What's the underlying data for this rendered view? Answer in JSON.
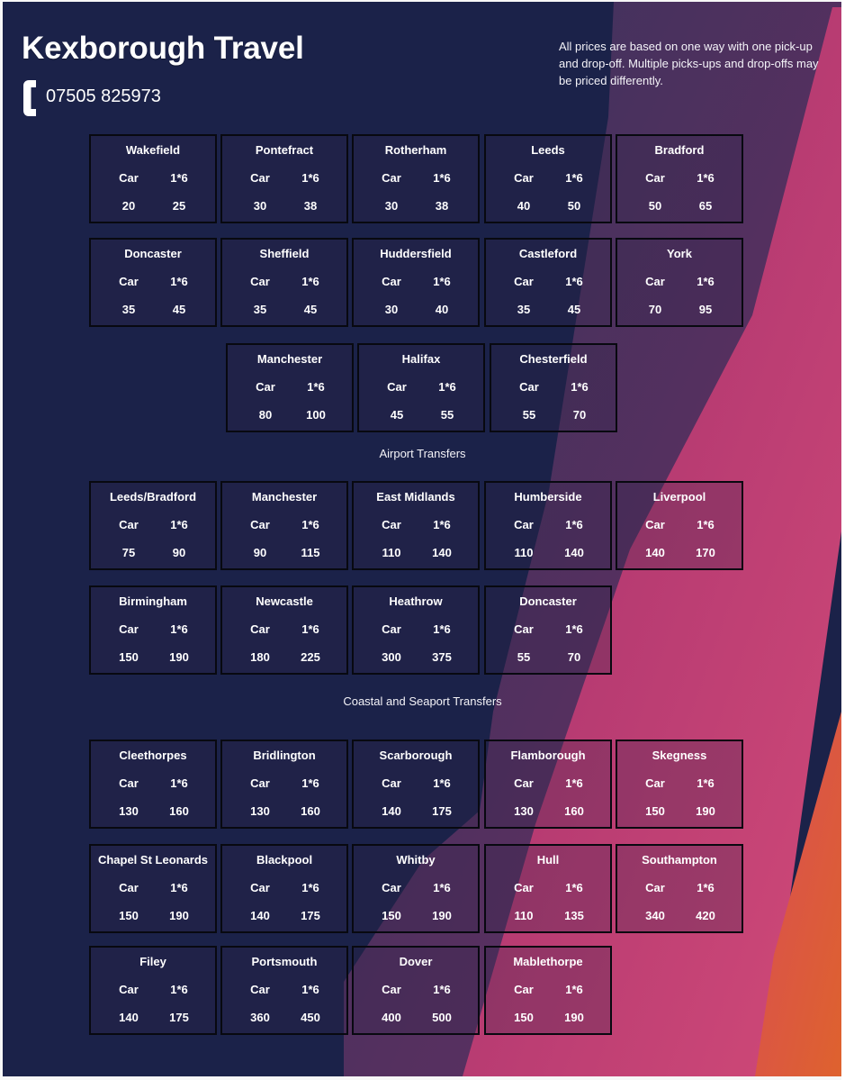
{
  "brand": {
    "title": "Kexborough Travel",
    "phone": "07505 825973",
    "note": "All prices are based on one way with one pick-up and drop-off. Multiple picks-ups and drop-offs may be priced differently."
  },
  "sections": [
    {
      "heading": "",
      "cards": [
        {
          "city": "Wakefield",
          "car_label": "Car",
          "six_label": "1*6",
          "car": "20",
          "six": "25"
        },
        {
          "city": "Pontefract",
          "car_label": "Car",
          "six_label": "1*6",
          "car": "30",
          "six": "38"
        },
        {
          "city": "Rotherham",
          "car_label": "Car",
          "six_label": "1*6",
          "car": "30",
          "six": "38"
        },
        {
          "city": "Leeds",
          "car_label": "Car",
          "six_label": "1*6",
          "car": "40",
          "six": "50"
        },
        {
          "city": "Bradford",
          "car_label": "Car",
          "six_label": "1*6",
          "car": "50",
          "six": "65"
        },
        {
          "city": "Doncaster",
          "car_label": "Car",
          "six_label": "1*6",
          "car": "35",
          "six": "45"
        },
        {
          "city": "Sheffield",
          "car_label": "Car",
          "six_label": "1*6",
          "car": "35",
          "six": "45"
        },
        {
          "city": "Huddersfield",
          "car_label": "Car",
          "six_label": "1*6",
          "car": "30",
          "six": "40"
        },
        {
          "city": "Castleford",
          "car_label": "Car",
          "six_label": "1*6",
          "car": "35",
          "six": "45"
        },
        {
          "city": "York",
          "car_label": "Car",
          "six_label": "1*6",
          "car": "70",
          "six": "95"
        },
        {
          "city": "Manchester",
          "car_label": "Car",
          "six_label": "1*6",
          "car": "80",
          "six": "100"
        },
        {
          "city": "Halifax",
          "car_label": "Car",
          "six_label": "1*6",
          "car": "45",
          "six": "55"
        },
        {
          "city": "Chesterfield",
          "car_label": "Car",
          "six_label": "1*6",
          "car": "55",
          "six": "70"
        }
      ]
    },
    {
      "heading": "Airport Transfers",
      "cards": [
        {
          "city": "Leeds/Bradford",
          "car_label": "Car",
          "six_label": "1*6",
          "car": "75",
          "six": "90"
        },
        {
          "city": "Manchester",
          "car_label": "Car",
          "six_label": "1*6",
          "car": "90",
          "six": "115"
        },
        {
          "city": "East Midlands",
          "car_label": "Car",
          "six_label": "1*6",
          "car": "110",
          "six": "140"
        },
        {
          "city": "Humberside",
          "car_label": "Car",
          "six_label": "1*6",
          "car": "110",
          "six": "140"
        },
        {
          "city": "Liverpool",
          "car_label": "Car",
          "six_label": "1*6",
          "car": "140",
          "six": "170"
        },
        {
          "city": "Birmingham",
          "car_label": "Car",
          "six_label": "1*6",
          "car": "150",
          "six": "190"
        },
        {
          "city": "Newcastle",
          "car_label": "Car",
          "six_label": "1*6",
          "car": "180",
          "six": "225"
        },
        {
          "city": "Heathrow",
          "car_label": "Car",
          "six_label": "1*6",
          "car": "300",
          "six": "375"
        },
        {
          "city": "Doncaster",
          "car_label": "Car",
          "six_label": "1*6",
          "car": "55",
          "six": "70"
        }
      ]
    },
    {
      "heading": "Coastal and Seaport Transfers",
      "cards": [
        {
          "city": "Cleethorpes",
          "car_label": "Car",
          "six_label": "1*6",
          "car": "130",
          "six": "160"
        },
        {
          "city": "Bridlington",
          "car_label": "Car",
          "six_label": "1*6",
          "car": "130",
          "six": "160"
        },
        {
          "city": "Scarborough",
          "car_label": "Car",
          "six_label": "1*6",
          "car": "140",
          "six": "175"
        },
        {
          "city": "Flamborough",
          "car_label": "Car",
          "six_label": "1*6",
          "car": "130",
          "six": "160"
        },
        {
          "city": "Skegness",
          "car_label": "Car",
          "six_label": "1*6",
          "car": "150",
          "six": "190"
        },
        {
          "city": "Chapel St Leonards",
          "car_label": "Car",
          "six_label": "1*6",
          "car": "150",
          "six": "190"
        },
        {
          "city": "Blackpool",
          "car_label": "Car",
          "six_label": "1*6",
          "car": "140",
          "six": "175"
        },
        {
          "city": "Whitby",
          "car_label": "Car",
          "six_label": "1*6",
          "car": "150",
          "six": "190"
        },
        {
          "city": "Hull",
          "car_label": "Car",
          "six_label": "1*6",
          "car": "110",
          "six": "135"
        },
        {
          "city": "Southampton",
          "car_label": "Car",
          "six_label": "1*6",
          "car": "340",
          "six": "420"
        },
        {
          "city": "Filey",
          "car_label": "Car",
          "six_label": "1*6",
          "car": "140",
          "six": "175"
        },
        {
          "city": "Portsmouth",
          "car_label": "Car",
          "six_label": "1*6",
          "car": "360",
          "six": "450"
        },
        {
          "city": "Dover",
          "car_label": "Car",
          "six_label": "1*6",
          "car": "400",
          "six": "500"
        },
        {
          "city": "Mablethorpe",
          "car_label": "Car",
          "six_label": "1*6",
          "car": "150",
          "six": "190"
        }
      ]
    }
  ],
  "colors": {
    "navy": "#1b2249",
    "purple": "#542f68",
    "magenta": "#c93f78",
    "orange": "#e56634",
    "card_border": "#080910"
  },
  "icons": {
    "phone": "phone-icon"
  }
}
